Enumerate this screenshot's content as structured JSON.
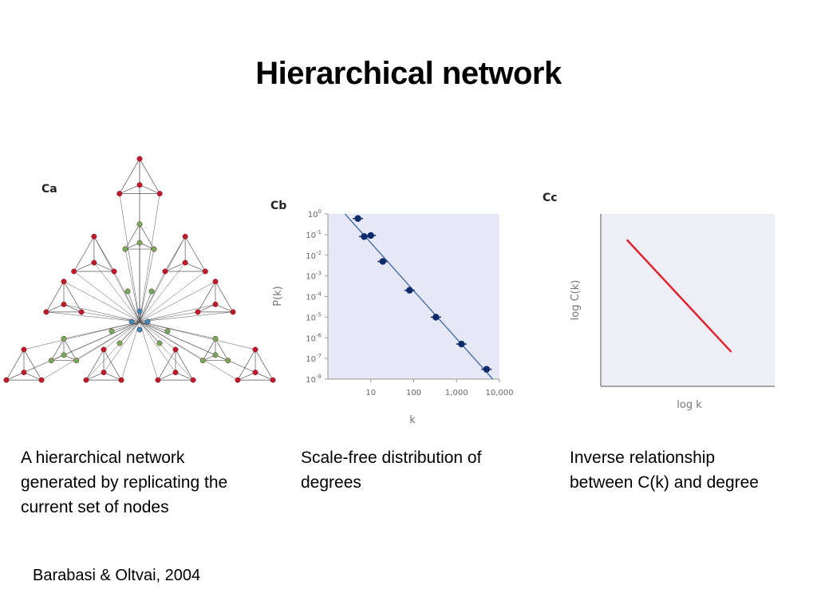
{
  "slide": {
    "title": "Hierarchical network",
    "footer": "Barabasi & Oltvai, 2004"
  },
  "panels": {
    "ca": {
      "tag": "Ca",
      "caption": [
        "A hierarchical network",
        "generated by replicating the",
        "current set of nodes"
      ],
      "node_colors": {
        "outer": "#c0192b",
        "middle": "#6fae5c",
        "center": "#3a8dbf",
        "edge": "#555555"
      }
    },
    "cb": {
      "tag": "Cb",
      "caption": [
        "Scale-free distribution of",
        "degrees"
      ]
    },
    "cc": {
      "tag": "Cc",
      "caption": [
        "Inverse relationship",
        "between C(k) and degree"
      ]
    }
  },
  "chart_data": [
    {
      "type": "scatter",
      "panel": "Cb",
      "xlabel": "k",
      "ylabel": "P(k)",
      "xscale": "log",
      "yscale": "log",
      "xlim": [
        1,
        10000
      ],
      "ylim": [
        1e-08,
        1
      ],
      "x_ticks": [
        "10",
        "100",
        "1,000",
        "10,000"
      ],
      "y_ticks": [
        "10^0",
        "10^-1",
        "10^-2",
        "10^-3",
        "10^-4",
        "10^-5",
        "10^-6",
        "10^-7",
        "10^-8"
      ],
      "points": [
        {
          "x": 5,
          "y": 0.6
        },
        {
          "x": 7,
          "y": 0.08
        },
        {
          "x": 10,
          "y": 0.09
        },
        {
          "x": 19,
          "y": 0.005
        },
        {
          "x": 80,
          "y": 0.0002
        },
        {
          "x": 330,
          "y": 1e-05
        },
        {
          "x": 1300,
          "y": 5e-07
        },
        {
          "x": 5000,
          "y": 3e-08
        }
      ],
      "fit_line": {
        "x": [
          2.5,
          7000
        ],
        "y": [
          1,
          1e-08
        ]
      },
      "colors": {
        "points": "#0d2b6b",
        "fit": "#4a6fa5",
        "background": "#e6e9f5"
      },
      "grid": false,
      "legend": "none"
    },
    {
      "type": "line",
      "panel": "Cc",
      "xlabel": "log k",
      "ylabel": "log C(k)",
      "series": [
        {
          "x": [
            0.15,
            0.75
          ],
          "y": [
            0.85,
            0.2
          ]
        }
      ],
      "colors": {
        "line": "#e0242e",
        "background": "#eeeff6"
      },
      "grid": false,
      "legend": "none"
    }
  ]
}
